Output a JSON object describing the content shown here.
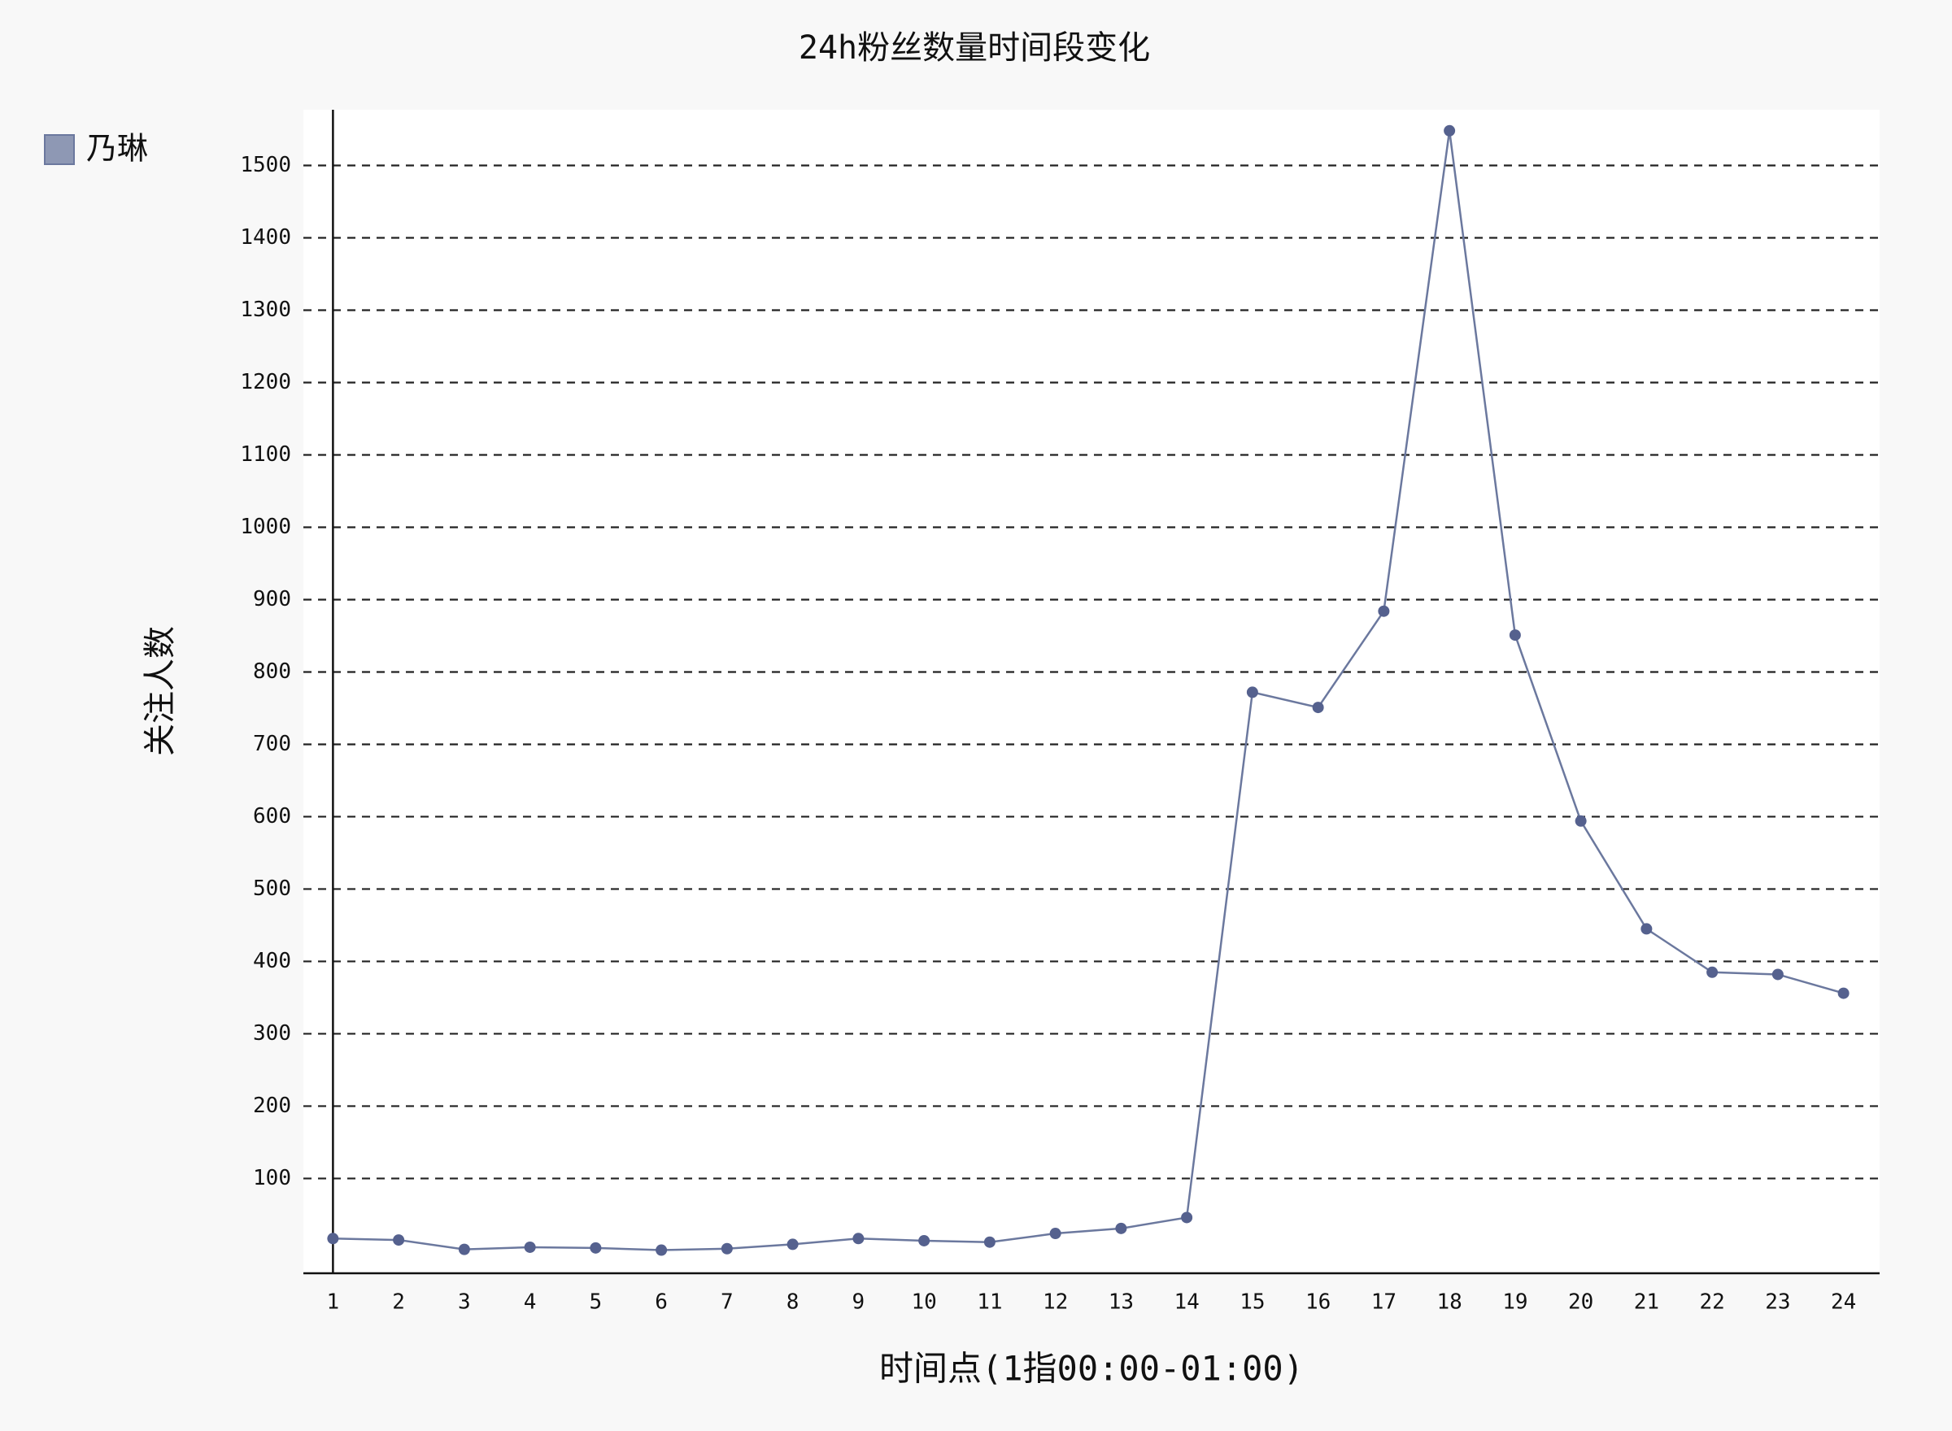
{
  "chart_data": {
    "type": "line",
    "title": "24h粉丝数量时间段变化",
    "x_label": "时间点(1指00:00-01:00)",
    "y_label": "关注人数",
    "categories": [
      "1",
      "2",
      "3",
      "4",
      "5",
      "6",
      "7",
      "8",
      "9",
      "10",
      "11",
      "12",
      "13",
      "14",
      "15",
      "16",
      "17",
      "18",
      "19",
      "20",
      "21",
      "22",
      "23",
      "24"
    ],
    "series": [
      {
        "name": "乃琳",
        "color": "#6b789e",
        "values": [
          17,
          15,
          2,
          5,
          4,
          1,
          3,
          9,
          17,
          14,
          12,
          24,
          31,
          46,
          772,
          751,
          884,
          1548,
          851,
          594,
          445,
          385,
          382,
          356
        ]
      }
    ],
    "ylim": [
      -31,
      1577
    ],
    "yticks": [
      100,
      200,
      300,
      400,
      500,
      600,
      700,
      800,
      900,
      1000,
      1100,
      1200,
      1300,
      1400,
      1500
    ],
    "grid": true,
    "legend": "top-left"
  }
}
